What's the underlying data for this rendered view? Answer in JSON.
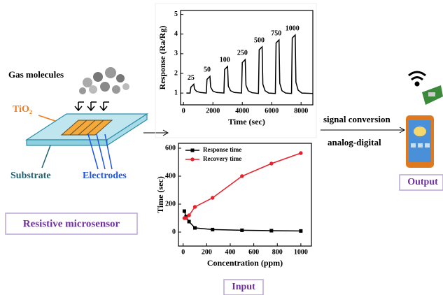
{
  "labels": {
    "gas": "Gas molecules",
    "tio2": "TiO₂",
    "substrate": "Substrate",
    "electrodes": "Electrodes",
    "sensor": "Resistive microsensor",
    "signal": "signal conversion",
    "adc": "analog-digital",
    "output": "Output",
    "input": "Input"
  },
  "chart_data": [
    {
      "type": "line",
      "x_label": "Time (sec)",
      "y_label": "Response (Ra/Rg)",
      "color": "#000000",
      "x": [
        200,
        450,
        500,
        700,
        750,
        900,
        1150,
        1550,
        1600,
        1800,
        1850,
        2000,
        2250,
        2750,
        2800,
        3000,
        3050,
        3200,
        3450,
        3950,
        4000,
        4200,
        4250,
        4400,
        4650,
        5100,
        5150,
        5350,
        5400,
        5550,
        5800,
        6250,
        6300,
        6500,
        6550,
        6700,
        6950,
        7350,
        7400,
        7600,
        7650,
        7800,
        8050,
        8800
      ],
      "values": [
        1.0,
        1.0,
        1.3,
        1.45,
        1.2,
        1.08,
        1.03,
        1.0,
        1.7,
        1.85,
        1.3,
        1.1,
        1.03,
        1.0,
        2.2,
        2.35,
        1.35,
        1.12,
        1.03,
        1.0,
        2.55,
        2.7,
        1.4,
        1.12,
        1.02,
        0.98,
        3.2,
        3.35,
        1.45,
        1.12,
        1.0,
        0.98,
        3.55,
        3.7,
        1.5,
        1.12,
        1.0,
        0.98,
        3.8,
        3.95,
        1.55,
        1.15,
        1.0,
        0.98
      ],
      "peak_labels": [
        "25",
        "50",
        "100",
        "250",
        "500",
        "750",
        "1000"
      ],
      "xlim": [
        -200,
        8800
      ],
      "xticks": [
        0,
        2000,
        4000,
        6000,
        8000
      ],
      "ylim": [
        0.4,
        5.2
      ],
      "yticks": [
        1,
        2,
        3,
        4,
        5
      ]
    },
    {
      "type": "line",
      "x_label": "Concentration (ppm)",
      "y_label": "Time (sec)",
      "legend": "upper left",
      "x": [
        10,
        25,
        50,
        100,
        250,
        500,
        750,
        1000
      ],
      "series": [
        {
          "name": "Response time",
          "color": "#000000",
          "marker": "square",
          "values": [
            150,
            110,
            75,
            30,
            18,
            13,
            10,
            8
          ]
        },
        {
          "name": "Recovery time",
          "color": "#e8202a",
          "marker": "circle",
          "values": [
            100,
            100,
            120,
            180,
            245,
            400,
            490,
            565
          ]
        }
      ],
      "xlim": [
        -40,
        1090
      ],
      "xticks": [
        0,
        200,
        400,
        600,
        800,
        1000
      ],
      "ylim": [
        -100,
        635
      ],
      "yticks": [
        0,
        200,
        400,
        600
      ]
    }
  ]
}
